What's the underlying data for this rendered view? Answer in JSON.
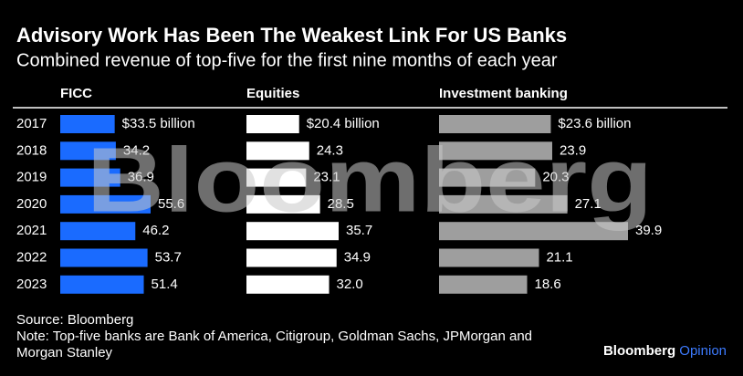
{
  "chart_data": {
    "type": "bar",
    "orientation": "horizontal",
    "title": "Advisory Work Has Been The Weakest Link For US Banks",
    "subtitle": "Combined revenue of top-five for the first nine months of each year",
    "categories": [
      "2017",
      "2018",
      "2019",
      "2020",
      "2021",
      "2022",
      "2023"
    ],
    "series": [
      {
        "name": "FICC",
        "color": "#1a6bff",
        "values": [
          33.5,
          34.2,
          36.9,
          55.6,
          46.2,
          53.7,
          51.4
        ],
        "value_labels": [
          "$33.5 billion",
          "34.2",
          "36.9",
          "55.6",
          "46.2",
          "53.7",
          "51.4"
        ]
      },
      {
        "name": "Equities",
        "color": "#ffffff",
        "values": [
          20.4,
          24.3,
          23.1,
          28.5,
          35.7,
          34.9,
          32.0
        ],
        "value_labels": [
          "$20.4 billion",
          "24.3",
          "23.1",
          "28.5",
          "35.7",
          "34.9",
          "32.0"
        ]
      },
      {
        "name": "Investment banking",
        "color": "#9e9e9e",
        "values": [
          23.6,
          23.9,
          20.3,
          27.1,
          39.9,
          21.1,
          18.6
        ],
        "value_labels": [
          "$23.6 billion",
          "23.9",
          "20.3",
          "27.1",
          "39.9",
          "21.1",
          "18.6"
        ]
      }
    ],
    "source": "Source: Bloomberg",
    "note": "Note: Top-five banks are Bank of America, Citigroup, Goldman Sachs, JPMorgan and Morgan Stanley",
    "watermark": "Bloomberg",
    "brand": {
      "name": "Bloomberg",
      "section": "Opinion"
    }
  }
}
